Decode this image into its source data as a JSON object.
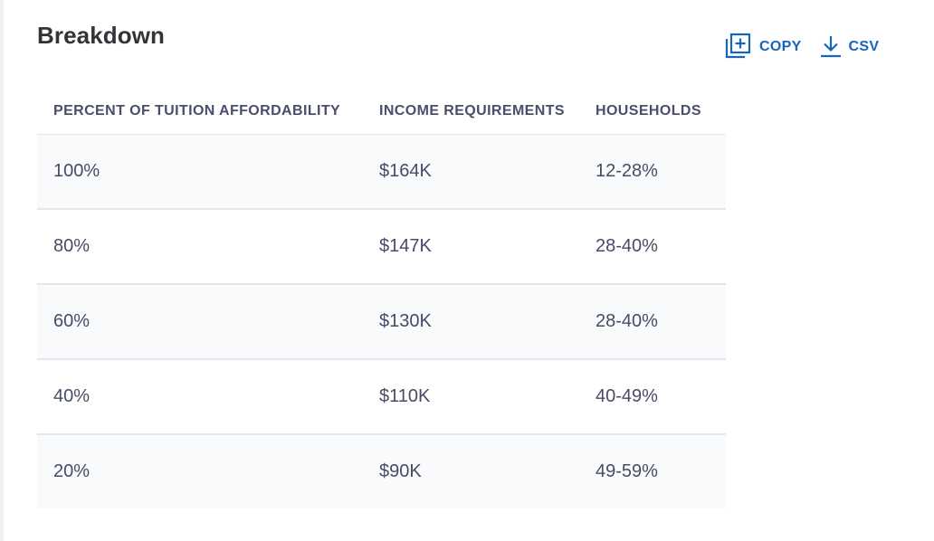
{
  "title": "Breakdown",
  "actions": {
    "copy": {
      "label": "COPY",
      "icon": "copy-icon"
    },
    "csv": {
      "label": "CSV",
      "icon": "download-icon"
    },
    "color": "#1565c0"
  },
  "table": {
    "headers": [
      "PERCENT OF TUITION AFFORDABILITY",
      "INCOME REQUIREMENTS",
      "HOUSEHOLDS"
    ],
    "rows": [
      [
        "100%",
        "$164K",
        "12-28%"
      ],
      [
        "80%",
        "$147K",
        "28-40%"
      ],
      [
        "60%",
        "$130K",
        "28-40%"
      ],
      [
        "40%",
        "$110K",
        "40-49%"
      ],
      [
        "20%",
        "$90K",
        "49-59%"
      ]
    ]
  }
}
